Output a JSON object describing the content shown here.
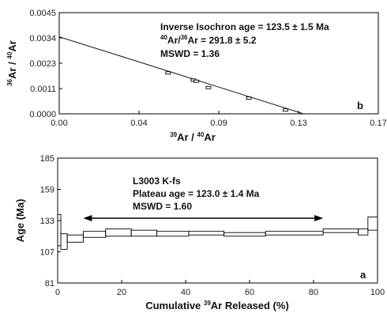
{
  "chart_data": [
    {
      "type": "scatter",
      "panel": "b",
      "annotations": [
        "Inverse Isochron age = 123.5 ± 1.5 Ma",
        "40Ar/36Ar = 291.8 ± 5.2",
        "MSWD = 1.36"
      ],
      "xlabel": "39Ar / 40Ar",
      "ylabel": "36Ar / 40Ar",
      "xlim": [
        0,
        0.17
      ],
      "ylim": [
        0,
        0.0045
      ],
      "xticks": [
        "0.00",
        "0.04",
        "0.09",
        "0.13",
        "0.17"
      ],
      "yticks": [
        "0.0000",
        "0.0011",
        "0.0023",
        "0.0034",
        "0.0045"
      ],
      "points": [
        {
          "x": 0.058,
          "y": 0.00182
        },
        {
          "x": 0.0715,
          "y": 0.0015
        },
        {
          "x": 0.073,
          "y": 0.00145
        },
        {
          "x": 0.0795,
          "y": 0.00117
        },
        {
          "x": 0.101,
          "y": 0.0007
        },
        {
          "x": 0.1205,
          "y": 0.00017
        }
      ],
      "fit_line": {
        "x": [
          0,
          0.1302
        ],
        "y": [
          0.003427,
          0
        ]
      }
    },
    {
      "type": "step",
      "panel": "a",
      "annotations": [
        "L3003 K-fs",
        "Plateau age = 123.0 ± 1.4 Ma",
        "MSWD = 1.60"
      ],
      "xlabel": "Cumulative 39Ar Released (%)",
      "ylabel": "Age (Ma)",
      "xlim": [
        0,
        100
      ],
      "ylim": [
        81,
        185
      ],
      "xticks": [
        "0",
        "20",
        "40",
        "60",
        "80",
        "100"
      ],
      "yticks": [
        "81",
        "107",
        "133",
        "159",
        "185"
      ],
      "plateau_range": [
        8,
        83
      ],
      "steps": [
        {
          "x0": 0,
          "x1": 1,
          "low": 112,
          "high": 138
        },
        {
          "x0": 1,
          "x1": 3,
          "low": 109,
          "high": 122
        },
        {
          "x0": 3,
          "x1": 8,
          "low": 115,
          "high": 121
        },
        {
          "x0": 8,
          "x1": 15,
          "low": 119,
          "high": 124
        },
        {
          "x0": 15,
          "x1": 23,
          "low": 120,
          "high": 126
        },
        {
          "x0": 23,
          "x1": 31,
          "low": 120,
          "high": 125
        },
        {
          "x0": 31,
          "x1": 41,
          "low": 120,
          "high": 124
        },
        {
          "x0": 41,
          "x1": 52,
          "low": 121,
          "high": 124
        },
        {
          "x0": 52,
          "x1": 65,
          "low": 120,
          "high": 123
        },
        {
          "x0": 65,
          "x1": 83,
          "low": 121,
          "high": 124
        },
        {
          "x0": 83,
          "x1": 94,
          "low": 123,
          "high": 126
        },
        {
          "x0": 94,
          "x1": 97,
          "low": 121,
          "high": 126
        },
        {
          "x0": 97,
          "x1": 100,
          "low": 125,
          "high": 136
        }
      ]
    }
  ],
  "panel_b": {
    "letter": "b",
    "annotation_line1": "Inverse Isochron age = 123.5 ± 1.5 Ma",
    "annotation_line2_sup1": "40",
    "annotation_line2_mid": "Ar/",
    "annotation_line2_sup2": "36",
    "annotation_line2_rest": "Ar = 291.8 ± 5.2",
    "annotation_line3": "MSWD = 1.36",
    "xlabel_sup": "39",
    "xlabel_mid": "Ar / ",
    "xlabel_sup2": "40",
    "xlabel_rest": "Ar",
    "ylabel_sup": "36",
    "ylabel_mid": "Ar / ",
    "ylabel_sup2": "40",
    "ylabel_rest": "Ar"
  },
  "panel_a": {
    "letter": "a",
    "annotation_line1": "L3003 K-fs",
    "annotation_line2": "Plateau age = 123.0 ± 1.4 Ma",
    "annotation_line3": "MSWD = 1.60",
    "xlabel_pre": "Cumulative ",
    "xlabel_sup": "39",
    "xlabel_rest": "Ar Released (%)",
    "ylabel": "Age (Ma)"
  }
}
